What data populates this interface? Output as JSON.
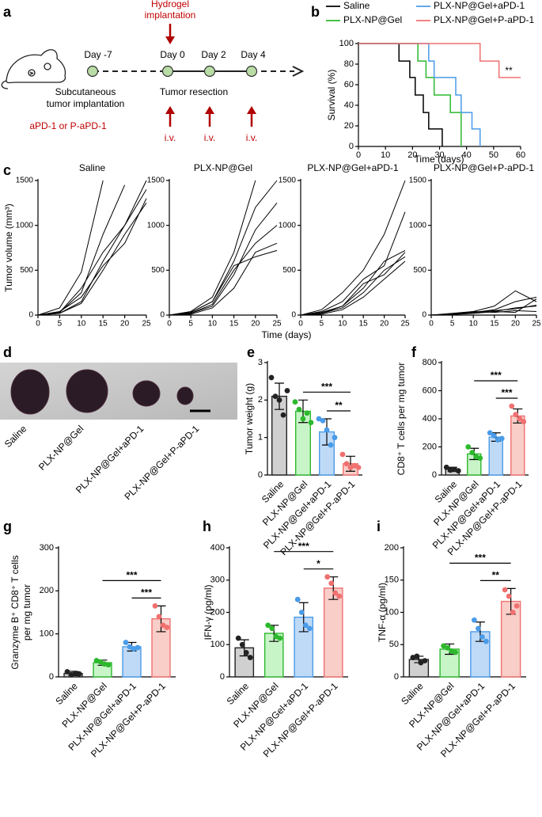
{
  "schematic": {
    "panel_label": "a",
    "hydrogel": [
      "Hydrogel",
      "implantation"
    ],
    "days": [
      "Day -7",
      "Day 0",
      "Day 2",
      "Day 4"
    ],
    "implantation": [
      "Subcutaneous",
      "tumor implantation"
    ],
    "resection": "Tumor resection",
    "treatment": "aPD-1 or P-aPD-1",
    "iv": [
      "i.v.",
      "i.v.",
      "i.v."
    ]
  },
  "photo": {
    "panel_label": "d",
    "labels": [
      "Saline",
      "PLX-NP@Gel",
      "PLX-NP@Gel+aPD-1",
      "PLX-NP@Gel+P-aPD-1"
    ]
  },
  "chart_data": [
    {
      "type": "step",
      "panel_label": "b",
      "xlabel": "Time (days)",
      "ylabel": "Survival (%)",
      "annotation": "**",
      "xlim": [
        0,
        60
      ],
      "xticks": [
        0,
        10,
        20,
        30,
        40,
        50,
        60
      ],
      "ylim": [
        0,
        100
      ],
      "yticks": [
        0,
        20,
        40,
        60,
        80,
        100
      ],
      "series": [
        {
          "name": "Saline",
          "color": "#000000",
          "x": [
            0,
            15,
            19,
            21,
            24,
            26,
            31
          ],
          "values": [
            100,
            83,
            67,
            50,
            33,
            17,
            0
          ]
        },
        {
          "name": "PLX-NP@Gel",
          "color": "#2db82d",
          "x": [
            0,
            22,
            25,
            28,
            34,
            38
          ],
          "values": [
            100,
            83,
            67,
            50,
            33,
            0
          ]
        },
        {
          "name": "PLX-NP@Gel+aPD-1",
          "color": "#4a9be8",
          "x": [
            0,
            26,
            28,
            36,
            38,
            42,
            45
          ],
          "values": [
            100,
            83,
            67,
            50,
            33,
            17,
            0
          ]
        },
        {
          "name": "PLX-NP@Gel+P-aPD-1",
          "color": "#f07070",
          "x": [
            0,
            45,
            52,
            60
          ],
          "values": [
            100,
            83,
            67,
            67
          ]
        }
      ]
    },
    {
      "type": "line",
      "panel_label": "c",
      "title": "Saline",
      "ylabel": "Tumor volume (mm³)",
      "xlabel": "Time (days)",
      "color": "#000000",
      "x": [
        0,
        5,
        10,
        15,
        20,
        25
      ],
      "xlim": [
        0,
        25
      ],
      "xticks": [
        0,
        5,
        10,
        15,
        20,
        25
      ],
      "ylim": [
        0,
        1500
      ],
      "yticks": [
        0,
        500,
        1000,
        1500
      ],
      "series": [
        {
          "values": [
            0,
            80,
            480,
            1500,
            null,
            null
          ]
        },
        {
          "values": [
            0,
            30,
            250,
            900,
            1450,
            null
          ]
        },
        {
          "values": [
            0,
            20,
            150,
            600,
            1000,
            1500
          ]
        },
        {
          "values": [
            0,
            40,
            200,
            550,
            800,
            1300
          ]
        },
        {
          "values": [
            0,
            20,
            130,
            500,
            900,
            1250
          ]
        },
        {
          "values": [
            0,
            30,
            300,
            700,
            1000,
            1400
          ]
        }
      ]
    },
    {
      "type": "line",
      "title": "PLX-NP@Gel",
      "color": "#000000",
      "x": [
        0,
        5,
        10,
        15,
        20,
        25
      ],
      "xlim": [
        0,
        25
      ],
      "xticks": [
        0,
        5,
        10,
        15,
        20,
        25
      ],
      "ylim": [
        0,
        1500
      ],
      "yticks": [
        0,
        500,
        1000,
        1500
      ],
      "series": [
        {
          "values": [
            0,
            40,
            200,
            700,
            1500,
            null
          ]
        },
        {
          "values": [
            0,
            30,
            150,
            600,
            1200,
            1500
          ]
        },
        {
          "values": [
            0,
            20,
            100,
            450,
            950,
            1250
          ]
        },
        {
          "values": [
            0,
            20,
            120,
            500,
            800,
            1000
          ]
        },
        {
          "values": [
            0,
            10,
            80,
            300,
            700,
            800
          ]
        },
        {
          "values": [
            0,
            30,
            150,
            550,
            650,
            720
          ]
        }
      ]
    },
    {
      "type": "line",
      "title": "PLX-NP@Gel+aPD-1",
      "color": "#000000",
      "x": [
        0,
        5,
        10,
        15,
        20,
        25
      ],
      "xlim": [
        0,
        25
      ],
      "xticks": [
        0,
        5,
        10,
        15,
        20,
        25
      ],
      "ylim": [
        0,
        1500
      ],
      "yticks": [
        0,
        500,
        1000,
        1500
      ],
      "series": [
        {
          "values": [
            0,
            60,
            250,
            500,
            900,
            1500
          ]
        },
        {
          "values": [
            0,
            40,
            150,
            400,
            550,
            1150
          ]
        },
        {
          "values": [
            0,
            30,
            100,
            300,
            600,
            720
          ]
        },
        {
          "values": [
            0,
            20,
            80,
            250,
            500,
            650
          ]
        },
        {
          "values": [
            0,
            10,
            60,
            200,
            400,
            600
          ]
        },
        {
          "values": [
            0,
            20,
            100,
            350,
            450,
            700
          ]
        }
      ]
    },
    {
      "type": "line",
      "title": "PLX-NP@Gel+P-aPD-1",
      "color": "#000000",
      "x": [
        0,
        5,
        10,
        15,
        20,
        25
      ],
      "xlim": [
        0,
        25
      ],
      "xticks": [
        0,
        5,
        10,
        15,
        20,
        25
      ],
      "ylim": [
        0,
        1500
      ],
      "yticks": [
        0,
        500,
        1000,
        1500
      ],
      "series": [
        {
          "values": [
            0,
            20,
            40,
            100,
            270,
            150
          ]
        },
        {
          "values": [
            0,
            10,
            30,
            60,
            150,
            200
          ]
        },
        {
          "values": [
            0,
            10,
            20,
            40,
            80,
            100
          ]
        },
        {
          "values": [
            0,
            5,
            30,
            50,
            70,
            110
          ]
        },
        {
          "values": [
            0,
            10,
            40,
            30,
            50,
            40
          ]
        },
        {
          "values": [
            0,
            5,
            20,
            40,
            30,
            180
          ]
        }
      ]
    },
    {
      "type": "bar",
      "panel_label": "e",
      "ylabel": "Tumor weight (g)",
      "categories": [
        "Saline",
        "PLX-NP@Gel",
        "PLX-NP@Gel+aPD-1",
        "PLX-NP@Gel+P-aPD-1"
      ],
      "values": [
        2.1,
        1.7,
        1.15,
        0.3
      ],
      "errors": [
        0.35,
        0.3,
        0.35,
        0.2
      ],
      "points": [
        [
          2.6,
          2.1,
          2.0,
          1.6,
          2.25
        ],
        [
          1.95,
          1.75,
          1.5,
          1.65,
          1.4
        ],
        [
          1.5,
          1.45,
          1.2,
          0.8,
          1.0
        ],
        [
          0.55,
          0.3,
          0.2,
          0.25,
          0.2
        ]
      ],
      "colors": [
        "#222222",
        "#2db82d",
        "#4a9be8",
        "#f07070"
      ],
      "fill_colors": [
        "#d0d0d0",
        "#c8f5c8",
        "#bfdaf7",
        "#f9cdc8"
      ],
      "ylim": [
        0,
        3
      ],
      "yticks": [
        0,
        1,
        2,
        3
      ],
      "annotations": [
        "***",
        "**"
      ]
    },
    {
      "type": "bar",
      "panel_label": "f",
      "ylabel": "CD8⁺ T cells per mg tumor",
      "categories": [
        "Saline",
        "PLX-NP@Gel",
        "PLX-NP@Gel+aPD-1",
        "PLX-NP@Gel+P-aPD-1"
      ],
      "values": [
        40,
        150,
        270,
        420
      ],
      "errors": [
        15,
        40,
        30,
        50
      ],
      "points": [
        [
          55,
          35,
          40,
          30
        ],
        [
          200,
          160,
          130,
          120
        ],
        [
          300,
          280,
          250,
          260
        ],
        [
          490,
          430,
          400,
          380
        ]
      ],
      "colors": [
        "#222222",
        "#2db82d",
        "#4a9be8",
        "#f07070"
      ],
      "fill_colors": [
        "#d0d0d0",
        "#c8f5c8",
        "#bfdaf7",
        "#f9cdc8"
      ],
      "ylim": [
        0,
        800
      ],
      "yticks": [
        0,
        200,
        400,
        600,
        800
      ],
      "annotations": [
        "***",
        "***"
      ]
    },
    {
      "type": "bar",
      "panel_label": "g",
      "ylabel": [
        "Granzyme B⁺ CD8⁺ T cells",
        "per mg tumor"
      ],
      "categories": [
        "Saline",
        "PLX-NP@Gel",
        "PLX-NP@Gel+aPD-1",
        "PLX-NP@Gel+P-aPD-1"
      ],
      "values": [
        8,
        33,
        70,
        135
      ],
      "errors": [
        5,
        6,
        10,
        30
      ],
      "points": [
        [
          12,
          5,
          8,
          7
        ],
        [
          38,
          35,
          30,
          28
        ],
        [
          80,
          70,
          65,
          68
        ],
        [
          165,
          140,
          120,
          115
        ]
      ],
      "colors": [
        "#222222",
        "#2db82d",
        "#4a9be8",
        "#f07070"
      ],
      "fill_colors": [
        "#d0d0d0",
        "#c8f5c8",
        "#bfdaf7",
        "#f9cdc8"
      ],
      "ylim": [
        0,
        300
      ],
      "yticks": [
        0,
        100,
        200,
        300
      ],
      "annotations": [
        "***",
        "***"
      ]
    },
    {
      "type": "bar",
      "panel_label": "h",
      "ylabel": "IFN-γ (pg/ml)",
      "categories": [
        "Saline",
        "PLX-NP@Gel",
        "PLX-NP@Gel+aPD-1",
        "PLX-NP@Gel+P-aPD-1"
      ],
      "values": [
        90,
        135,
        185,
        275
      ],
      "errors": [
        25,
        25,
        45,
        35
      ],
      "points": [
        [
          120,
          100,
          75,
          60
        ],
        [
          160,
          150,
          125,
          120
        ],
        [
          240,
          200,
          160,
          150
        ],
        [
          310,
          290,
          260,
          250
        ]
      ],
      "colors": [
        "#222222",
        "#2db82d",
        "#4a9be8",
        "#f07070"
      ],
      "fill_colors": [
        "#d0d0d0",
        "#c8f5c8",
        "#bfdaf7",
        "#f9cdc8"
      ],
      "ylim": [
        0,
        400
      ],
      "yticks": [
        0,
        100,
        200,
        300,
        400
      ],
      "annotations": [
        "***",
        "*"
      ]
    },
    {
      "type": "bar",
      "panel_label": "i",
      "ylabel": "TNF-α (pg/ml)",
      "categories": [
        "Saline",
        "PLX-NP@Gel",
        "PLX-NP@Gel+aPD-1",
        "PLX-NP@Gel+P-aPD-1"
      ],
      "values": [
        27,
        43,
        70,
        117
      ],
      "errors": [
        5,
        8,
        15,
        20
      ],
      "points": [
        [
          30,
          32,
          22,
          25
        ],
        [
          48,
          45,
          40,
          38
        ],
        [
          88,
          75,
          62,
          55
        ],
        [
          135,
          125,
          100,
          110
        ]
      ],
      "colors": [
        "#222222",
        "#2db82d",
        "#4a9be8",
        "#f07070"
      ],
      "fill_colors": [
        "#d0d0d0",
        "#c8f5c8",
        "#bfdaf7",
        "#f9cdc8"
      ],
      "ylim": [
        0,
        200
      ],
      "yticks": [
        0,
        50,
        100,
        150,
        200
      ],
      "annotations": [
        "***",
        "**"
      ]
    }
  ]
}
